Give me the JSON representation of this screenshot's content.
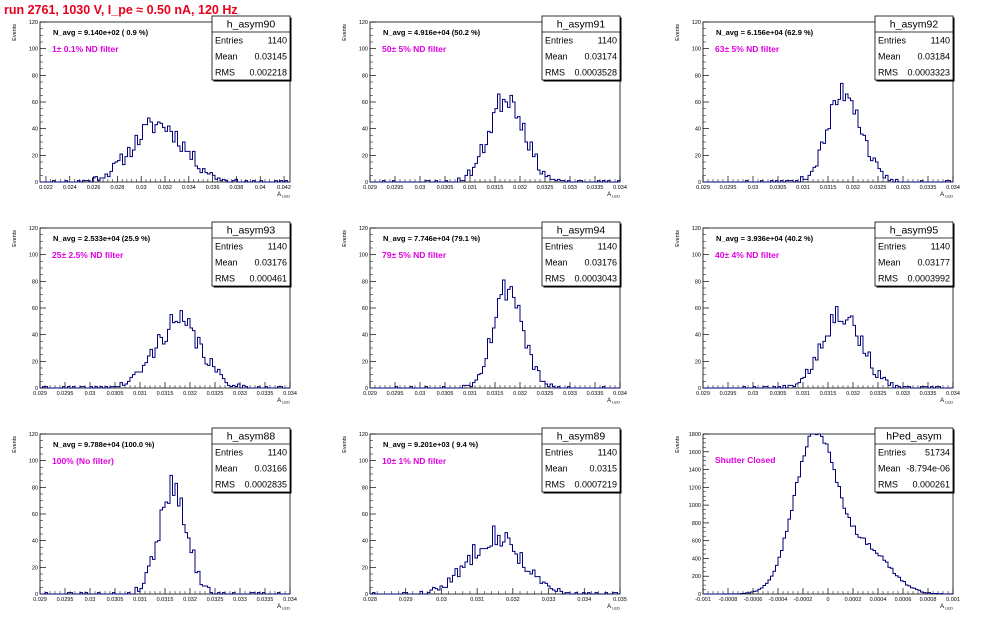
{
  "header": {
    "run_title": "run 2761,  1030 V, I_pe ≈ 0.50 nA, 120 Hz"
  },
  "colors": {
    "histogram": "#00007a",
    "annotation": "#e000e0",
    "title": "#e8001c",
    "axis": "#000000"
  },
  "chart_data": [
    {
      "type": "histogram",
      "name": "h_asym90",
      "stats": {
        "entries_label": "Entries",
        "entries": "1140",
        "mean_label": "Mean",
        "mean": "0.03145",
        "rms_label": "RMS",
        "rms": "0.002218"
      },
      "n_avg_label": "N_avg = 9.140e+02 ( 0.9 %)",
      "filter_label": "1± 0.1% ND filter",
      "ylabel": "Events",
      "xlabel": "A",
      "xlim": [
        0.0215,
        0.0425
      ],
      "ylim": [
        0,
        120
      ],
      "xticks": [
        0.022,
        0.024,
        0.026,
        0.028,
        0.03,
        0.032,
        0.034,
        0.036,
        0.038,
        0.04,
        0.042
      ],
      "xtick_labels": [
        "0.022",
        "0.024",
        "0.026",
        "0.028",
        "0.03",
        "0.032",
        "0.034",
        "0.036",
        "0.038",
        "0.04",
        "0.042"
      ],
      "yticks": [
        0,
        20,
        40,
        60,
        80,
        100,
        120
      ],
      "dist": {
        "type": "gauss",
        "mean": 0.03145,
        "sigma": 0.0022,
        "entries": 1140,
        "bins": 100,
        "seed": 11
      }
    },
    {
      "type": "histogram",
      "name": "h_asym91",
      "stats": {
        "entries_label": "Entries",
        "entries": "1140",
        "mean_label": "Mean",
        "mean": "0.03174",
        "rms_label": "RMS",
        "rms": "0.0003528"
      },
      "n_avg_label": "N_avg = 4.916e+04 (50.2 %)",
      "filter_label": "50± 5% ND filter",
      "ylabel": "Events",
      "xlabel": "A",
      "xlim": [
        0.029,
        0.034
      ],
      "ylim": [
        0,
        120
      ],
      "xticks": [
        0.029,
        0.0295,
        0.03,
        0.0305,
        0.031,
        0.0315,
        0.032,
        0.0325,
        0.033,
        0.0335,
        0.034
      ],
      "xtick_labels": [
        "0.029",
        "0.0295",
        "0.03",
        "0.0305",
        "0.031",
        "0.0315",
        "0.032",
        "0.0325",
        "0.033",
        "0.0335",
        "0.034"
      ],
      "yticks": [
        0,
        20,
        40,
        60,
        80,
        100,
        120
      ],
      "dist": {
        "type": "gauss",
        "mean": 0.03174,
        "sigma": 0.00035,
        "entries": 1140,
        "bins": 100,
        "seed": 23
      }
    },
    {
      "type": "histogram",
      "name": "h_asym92",
      "stats": {
        "entries_label": "Entries",
        "entries": "1140",
        "mean_label": "Mean",
        "mean": "0.03184",
        "rms_label": "RMS",
        "rms": "0.0003323"
      },
      "n_avg_label": "N_avg = 6.156e+04 (62.9 %)",
      "filter_label": "63± 5% ND filter",
      "ylabel": "Events",
      "xlabel": "A",
      "xlim": [
        0.029,
        0.034
      ],
      "ylim": [
        0,
        120
      ],
      "xticks": [
        0.029,
        0.0295,
        0.03,
        0.0305,
        0.031,
        0.0315,
        0.032,
        0.0325,
        0.033,
        0.0335,
        0.034
      ],
      "xtick_labels": [
        "0.029",
        "0.0295",
        "0.03",
        "0.0305",
        "0.031",
        "0.0315",
        "0.032",
        "0.0325",
        "0.033",
        "0.0335",
        "0.034"
      ],
      "yticks": [
        0,
        20,
        40,
        60,
        80,
        100,
        120
      ],
      "dist": {
        "type": "gauss",
        "mean": 0.03184,
        "sigma": 0.00033,
        "entries": 1140,
        "bins": 100,
        "seed": 37
      }
    },
    {
      "type": "histogram",
      "name": "h_asym93",
      "stats": {
        "entries_label": "Entries",
        "entries": "1140",
        "mean_label": "Mean",
        "mean": "0.03176",
        "rms_label": "RMS",
        "rms": "0.000461"
      },
      "n_avg_label": "N_avg = 2.533e+04 (25.9 %)",
      "filter_label": "25± 2.5% ND filter",
      "ylabel": "Events",
      "xlabel": "A",
      "xlim": [
        0.029,
        0.034
      ],
      "ylim": [
        0,
        120
      ],
      "xticks": [
        0.029,
        0.0295,
        0.03,
        0.0305,
        0.031,
        0.0315,
        0.032,
        0.0325,
        0.033,
        0.0335,
        0.034
      ],
      "xtick_labels": [
        "0.029",
        "0.0295",
        "0.03",
        "0.0305",
        "0.031",
        "0.0315",
        "0.032",
        "0.0325",
        "0.033",
        "0.0335",
        "0.034"
      ],
      "yticks": [
        0,
        20,
        40,
        60,
        80,
        100,
        120
      ],
      "dist": {
        "type": "gauss",
        "mean": 0.03176,
        "sigma": 0.00046,
        "entries": 1140,
        "bins": 100,
        "seed": 41
      }
    },
    {
      "type": "histogram",
      "name": "h_asym94",
      "stats": {
        "entries_label": "Entries",
        "entries": "1140",
        "mean_label": "Mean",
        "mean": "0.03176",
        "rms_label": "RMS",
        "rms": "0.0003043"
      },
      "n_avg_label": "N_avg = 7.746e+04 (79.1 %)",
      "filter_label": "79± 5% ND filter",
      "ylabel": "Events",
      "xlabel": "A",
      "xlim": [
        0.029,
        0.034
      ],
      "ylim": [
        0,
        120
      ],
      "xticks": [
        0.029,
        0.0295,
        0.03,
        0.0305,
        0.031,
        0.0315,
        0.032,
        0.0325,
        0.033,
        0.0335,
        0.034
      ],
      "xtick_labels": [
        "0.029",
        "0.0295",
        "0.03",
        "0.0305",
        "0.031",
        "0.0315",
        "0.032",
        "0.0325",
        "0.033",
        "0.0335",
        "0.034"
      ],
      "yticks": [
        0,
        20,
        40,
        60,
        80,
        100,
        120
      ],
      "dist": {
        "type": "gauss",
        "mean": 0.03176,
        "sigma": 0.0003,
        "entries": 1140,
        "bins": 100,
        "seed": 53
      }
    },
    {
      "type": "histogram",
      "name": "h_asym95",
      "stats": {
        "entries_label": "Entries",
        "entries": "1140",
        "mean_label": "Mean",
        "mean": "0.03177",
        "rms_label": "RMS",
        "rms": "0.0003992"
      },
      "n_avg_label": "N_avg = 3.936e+04 (40.2 %)",
      "filter_label": "40± 4% ND filter",
      "ylabel": "Events",
      "xlabel": "A",
      "xlim": [
        0.029,
        0.034
      ],
      "ylim": [
        0,
        120
      ],
      "xticks": [
        0.029,
        0.0295,
        0.03,
        0.0305,
        0.031,
        0.0315,
        0.032,
        0.0325,
        0.033,
        0.0335,
        0.034
      ],
      "xtick_labels": [
        "0.029",
        "0.0295",
        "0.03",
        "0.0305",
        "0.031",
        "0.0315",
        "0.032",
        "0.0325",
        "0.033",
        "0.0335",
        "0.034"
      ],
      "yticks": [
        0,
        20,
        40,
        60,
        80,
        100,
        120
      ],
      "dist": {
        "type": "gauss",
        "mean": 0.03177,
        "sigma": 0.0004,
        "entries": 1140,
        "bins": 100,
        "seed": 67
      }
    },
    {
      "type": "histogram",
      "name": "h_asym88",
      "stats": {
        "entries_label": "Entries",
        "entries": "1140",
        "mean_label": "Mean",
        "mean": "0.03166",
        "rms_label": "RMS",
        "rms": "0.0002835"
      },
      "n_avg_label": "N_avg = 9.788e+04 (100.0 %)",
      "filter_label": "100% (No filter)",
      "ylabel": "Events",
      "xlabel": "A",
      "xlim": [
        0.029,
        0.034
      ],
      "ylim": [
        0,
        120
      ],
      "xticks": [
        0.029,
        0.0295,
        0.03,
        0.0305,
        0.031,
        0.0315,
        0.032,
        0.0325,
        0.033,
        0.0335,
        0.034
      ],
      "xtick_labels": [
        "0.029",
        "0.0295",
        "0.03",
        "0.0305",
        "0.031",
        "0.0315",
        "0.032",
        "0.0325",
        "0.033",
        "0.0335",
        "0.034"
      ],
      "yticks": [
        0,
        20,
        40,
        60,
        80,
        100,
        120
      ],
      "dist": {
        "type": "gauss",
        "mean": 0.03166,
        "sigma": 0.00028,
        "entries": 1140,
        "bins": 100,
        "seed": 79
      }
    },
    {
      "type": "histogram",
      "name": "h_asym89",
      "stats": {
        "entries_label": "Entries",
        "entries": "1140",
        "mean_label": "Mean",
        "mean": "0.0315",
        "rms_label": "RMS",
        "rms": "0.0007219"
      },
      "n_avg_label": "N_avg = 9.201e+03 ( 9.4 %)",
      "filter_label": "10± 1% ND filter",
      "ylabel": "Events",
      "xlabel": "A",
      "xlim": [
        0.028,
        0.035
      ],
      "ylim": [
        0,
        120
      ],
      "xticks": [
        0.028,
        0.029,
        0.03,
        0.031,
        0.032,
        0.033,
        0.034,
        0.035
      ],
      "xtick_labels": [
        "0.028",
        "0.029",
        "0.03",
        "0.031",
        "0.032",
        "0.033",
        "0.034",
        "0.035"
      ],
      "yticks": [
        0,
        20,
        40,
        60,
        80,
        100,
        120
      ],
      "dist": {
        "type": "gauss",
        "mean": 0.0315,
        "sigma": 0.00072,
        "entries": 1140,
        "bins": 100,
        "seed": 83
      }
    },
    {
      "type": "histogram",
      "name": "hPed_asym",
      "stats": {
        "entries_label": "Entries",
        "entries": "51734",
        "mean_label": "Mean",
        "mean": "-8.794e-06",
        "rms_label": "RMS",
        "rms": "0.000261"
      },
      "n_avg_label": "",
      "filter_label": "Shutter Closed",
      "ylabel": "Events",
      "xlabel": "A",
      "xlim": [
        -0.001,
        0.001
      ],
      "ylim": [
        0,
        1800
      ],
      "xticks": [
        -0.001,
        -0.0008,
        -0.0006,
        -0.0004,
        -0.0002,
        0,
        0.0002,
        0.0004,
        0.0006,
        0.0008,
        0.001
      ],
      "xtick_labels": [
        "-0.001",
        "-0.0008",
        "-0.0006",
        "-0.0004",
        "-0.0002",
        "0",
        "0.0002",
        "0.0004",
        "0.0006",
        "0.0008",
        "0.001"
      ],
      "yticks": [
        0,
        200,
        400,
        600,
        800,
        1000,
        1200,
        1400,
        1600,
        1800
      ],
      "dist": {
        "type": "double-gauss",
        "g1": {
          "mean": -0.0001,
          "sigma": 0.00017,
          "amp": 1800
        },
        "g2": {
          "mean": 0.00032,
          "sigma": 0.00018,
          "amp": 480
        },
        "bins": 100,
        "seed": 97
      }
    }
  ]
}
